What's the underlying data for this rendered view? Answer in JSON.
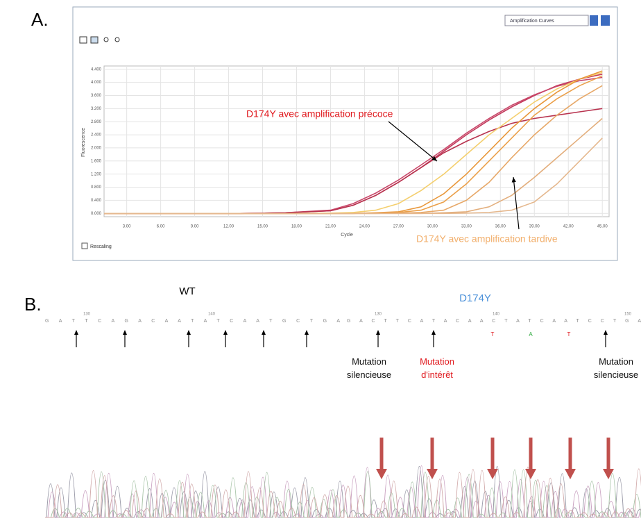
{
  "chart_data": {
    "type": "line",
    "panel_label": "A.",
    "dropdown": "Amplification Curves",
    "checkbox_label": "Rescaling",
    "x_label": "Cycle",
    "y_label": "Fluorescence",
    "x": [
      1,
      5,
      9,
      13,
      17,
      21,
      23,
      25,
      27,
      29,
      31,
      33,
      35,
      37,
      39,
      41,
      43,
      45
    ],
    "xlim": [
      1,
      45.6
    ],
    "ylim": [
      -0.1,
      4.5
    ],
    "xticks": [
      {
        "value": 3,
        "label": "3.00"
      },
      {
        "value": 6,
        "label": "6.00"
      },
      {
        "value": 9,
        "label": "9.00"
      },
      {
        "value": 12,
        "label": "12.00"
      },
      {
        "value": 15,
        "label": "15.00"
      },
      {
        "value": 18,
        "label": "18.00"
      },
      {
        "value": 21,
        "label": "21.00"
      },
      {
        "value": 24,
        "label": "24.00"
      },
      {
        "value": 27,
        "label": "27.00"
      },
      {
        "value": 30,
        "label": "30.00"
      },
      {
        "value": 33,
        "label": "33.00"
      },
      {
        "value": 36,
        "label": "36.00"
      },
      {
        "value": 39,
        "label": "39.00"
      },
      {
        "value": 42,
        "label": "42.00"
      },
      {
        "value": 45,
        "label": "45.00"
      }
    ],
    "yticks": [
      {
        "value": 0,
        "label": "0.000"
      },
      {
        "value": 0.4,
        "label": "0.400"
      },
      {
        "value": 0.8,
        "label": "0.800"
      },
      {
        "value": 1.2,
        "label": "1.200"
      },
      {
        "value": 1.6,
        "label": "1.600"
      },
      {
        "value": 2,
        "label": "2.000"
      },
      {
        "value": 2.4,
        "label": "2.400"
      },
      {
        "value": 2.8,
        "label": "2.800"
      },
      {
        "value": 3.2,
        "label": "3.200"
      },
      {
        "value": 3.6,
        "label": "3.600"
      },
      {
        "value": 4,
        "label": "4.000"
      },
      {
        "value": 4.4,
        "label": "4.400"
      }
    ],
    "grid": true,
    "series": [
      {
        "color": "#c23a5c",
        "values": [
          0,
          0,
          0,
          0,
          0.02,
          0.08,
          0.25,
          0.55,
          0.95,
          1.4,
          1.9,
          2.4,
          2.85,
          3.25,
          3.6,
          3.9,
          4.1,
          4.25
        ]
      },
      {
        "color": "#c9486a",
        "values": [
          0,
          0,
          0,
          0,
          0.02,
          0.1,
          0.3,
          0.62,
          1.02,
          1.48,
          1.95,
          2.45,
          2.9,
          3.3,
          3.62,
          3.88,
          4.05,
          4.15
        ]
      },
      {
        "color": "#b8334f",
        "values": [
          0,
          0,
          0,
          0,
          0.02,
          0.08,
          0.25,
          0.55,
          0.95,
          1.4,
          1.85,
          2.2,
          2.5,
          2.75,
          2.9,
          3.0,
          3.1,
          3.2
        ]
      },
      {
        "color": "#f4cf6e",
        "values": [
          0,
          0,
          0,
          0,
          0,
          0.01,
          0.03,
          0.1,
          0.3,
          0.7,
          1.2,
          1.8,
          2.4,
          2.9,
          3.4,
          3.8,
          4.1,
          4.3
        ]
      },
      {
        "color": "#e8973a",
        "values": [
          0,
          0,
          0,
          0,
          0,
          0,
          0,
          0.02,
          0.05,
          0.2,
          0.6,
          1.2,
          1.9,
          2.6,
          3.2,
          3.7,
          4.1,
          4.35
        ]
      },
      {
        "color": "#eba04a",
        "values": [
          0,
          0,
          0,
          0,
          0,
          0,
          0,
          0.01,
          0.03,
          0.1,
          0.35,
          0.9,
          1.6,
          2.3,
          3.0,
          3.5,
          3.9,
          4.2
        ]
      },
      {
        "color": "#e7a868",
        "values": [
          0,
          0,
          0,
          0,
          0,
          0,
          0,
          0,
          0.01,
          0.03,
          0.1,
          0.4,
          0.95,
          1.7,
          2.4,
          3.0,
          3.5,
          3.9
        ]
      },
      {
        "color": "#e3ae7c",
        "values": [
          0,
          0,
          0,
          0,
          0,
          0,
          0,
          0,
          0,
          0,
          0.02,
          0.05,
          0.2,
          0.55,
          1.1,
          1.7,
          2.3,
          2.9
        ]
      },
      {
        "color": "#e5b88e",
        "values": [
          0,
          0,
          0,
          0,
          0,
          0,
          0,
          0,
          0,
          0,
          0,
          0.01,
          0.03,
          0.1,
          0.35,
          0.9,
          1.6,
          2.3
        ]
      }
    ],
    "annotations": [
      {
        "text": "D174Y avec amplification précoce",
        "color": "#e0191e"
      },
      {
        "text": "D174Y avec amplification tardive",
        "color": "#f2b06e"
      }
    ]
  },
  "panel_b": {
    "label": "B.",
    "wt": {
      "title": "WT",
      "positions": [
        "130",
        "140"
      ],
      "sequence": "G A T T C A G A C A A T A T C A A T G C T G A"
    },
    "mutant": {
      "title": "D174Y",
      "positions": [
        "130",
        "140",
        "150"
      ],
      "sequence": "G A C T T C A T A C A A C T A T C A A T C C T G A",
      "calls": [
        {
          "text": "T",
          "color": "#e0191e"
        },
        {
          "text": "A",
          "color": "#2aa83a"
        },
        {
          "text": "T",
          "color": "#e0191e"
        }
      ],
      "notes": [
        {
          "text": "Mutation silencieuse",
          "color": "#111111"
        },
        {
          "text": "Mutation d'intérêt",
          "color": "#e0191e"
        },
        {
          "text": "Mutation silencieuse",
          "color": "#111111"
        }
      ]
    }
  }
}
